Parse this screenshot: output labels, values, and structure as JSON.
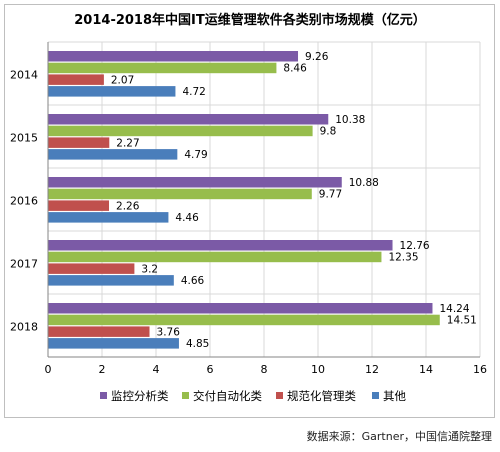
{
  "chart_data": {
    "type": "bar",
    "orientation": "horizontal",
    "title": "2014-2018年中国IT运维管理软件各类别市场规模（亿元）",
    "categories": [
      "2014",
      "2015",
      "2016",
      "2017",
      "2018"
    ],
    "series": [
      {
        "name": "监控分析类",
        "color": "#7b5aa6",
        "values": [
          9.26,
          10.38,
          10.88,
          12.76,
          14.24
        ]
      },
      {
        "name": "交付自动化类",
        "color": "#97bd4c",
        "values": [
          8.46,
          9.8,
          9.77,
          12.35,
          14.51
        ]
      },
      {
        "name": "规范化管理类",
        "color": "#c0504d",
        "values": [
          2.07,
          2.27,
          2.26,
          3.2,
          3.76
        ]
      },
      {
        "name": "其他",
        "color": "#4a7ebb",
        "values": [
          4.72,
          4.79,
          4.46,
          4.66,
          4.85
        ]
      }
    ],
    "value_labels": [
      [
        "9.26",
        "10.38",
        "10.88",
        "12.76",
        "14.24"
      ],
      [
        "8.46",
        "9.8",
        "9.77",
        "12.35",
        "14.51"
      ],
      [
        "2.07",
        "2.27",
        "2.26",
        "3.2",
        "3.76"
      ],
      [
        "4.72",
        "4.79",
        "4.46",
        "4.66",
        "4.85"
      ]
    ],
    "xlim": [
      0,
      16
    ],
    "xticks": [
      "0",
      "2",
      "4",
      "6",
      "8",
      "10",
      "12",
      "14",
      "16"
    ],
    "grid": true,
    "legend_position": "bottom"
  },
  "source_note": "数据来源：Gartner，中国信通院整理"
}
